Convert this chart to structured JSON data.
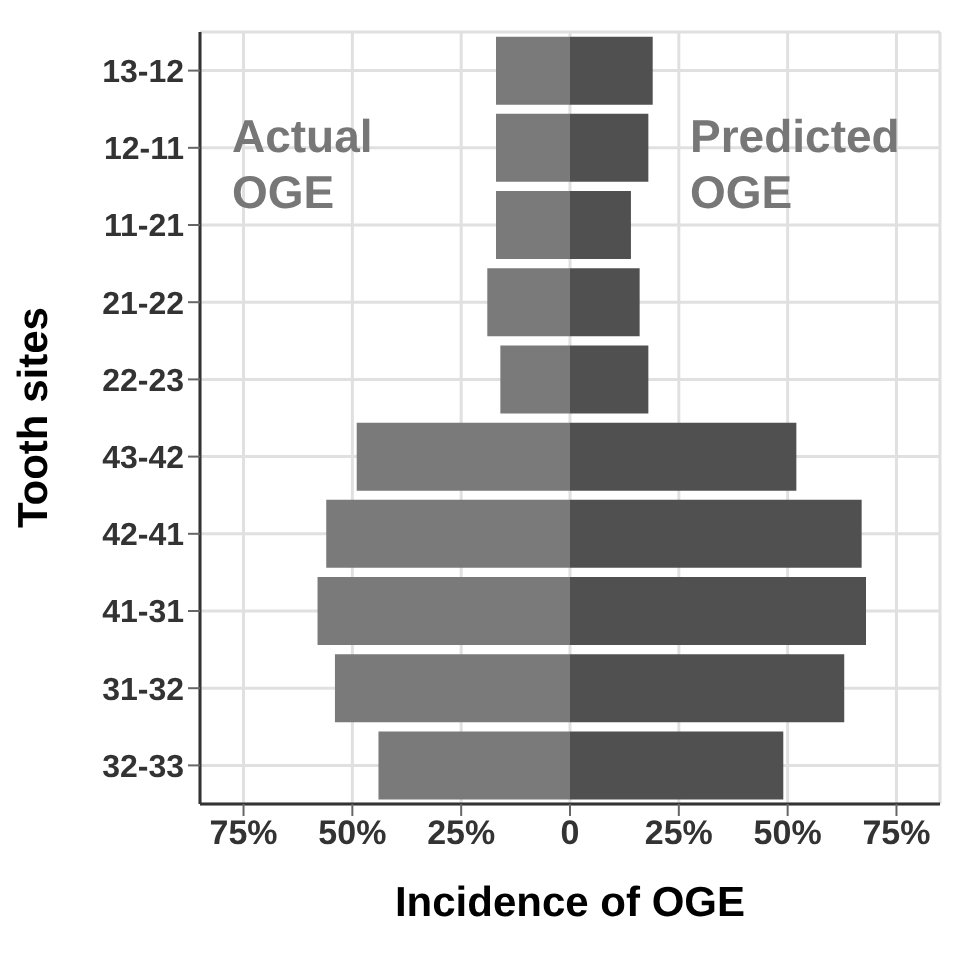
{
  "chart_data": {
    "type": "bar",
    "orientation": "horizontal",
    "stacked": true,
    "xlabel": "Incidence of OGE",
    "ylabel": "Tooth sites",
    "categories": [
      "13-12",
      "12-11",
      "11-21",
      "21-22",
      "22-23",
      "43-42",
      "42-41",
      "41-31",
      "31-32",
      "32-33"
    ],
    "series": [
      {
        "name": "Actual OGE",
        "color": "#7a7a7a",
        "values": [
          -17,
          -17,
          -17,
          -19,
          -16,
          -49,
          -56,
          -58,
          -54,
          -44
        ]
      },
      {
        "name": "Predicted OGE",
        "color": "#505050",
        "values": [
          19,
          18,
          14,
          16,
          18,
          52,
          67,
          68,
          63,
          49
        ]
      }
    ],
    "xlim": [
      -85,
      85
    ],
    "xticks": [
      {
        "value": -75,
        "label": "75%"
      },
      {
        "value": -50,
        "label": "50%"
      },
      {
        "value": -25,
        "label": "25%"
      },
      0,
      {
        "value": 25,
        "label": "25%"
      },
      {
        "value": 50,
        "label": "50%"
      },
      {
        "value": 75,
        "label": "75%"
      }
    ],
    "grid": true,
    "legend": false
  }
}
